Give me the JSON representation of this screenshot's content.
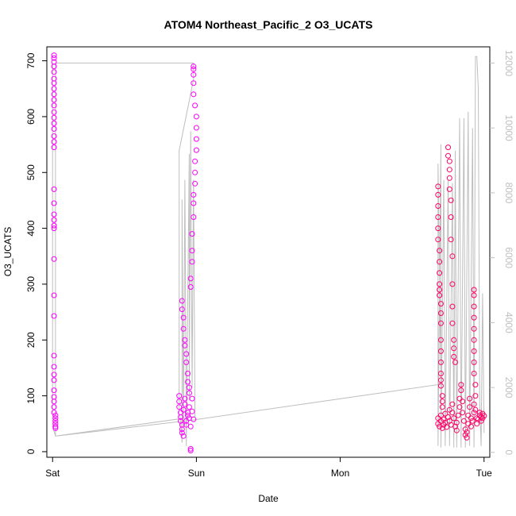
{
  "chart_data": {
    "type": "scatter",
    "title": "ATOM4 Northeast_Pacific_2 O3_UCATS",
    "xlabel": "Date",
    "ylabel": "O3_UCATS",
    "x_ticks": [
      "Sat",
      "Sun",
      "Mon",
      "Tue"
    ],
    "x_tick_values": [
      0,
      1,
      2,
      3
    ],
    "x_range": [
      -0.04,
      3.04
    ],
    "y_left_ticks": [
      0,
      100,
      200,
      300,
      400,
      500,
      600,
      700
    ],
    "y_left_range": [
      -10,
      725
    ],
    "y_right_ticks": [
      0,
      2000,
      4000,
      6000,
      8000,
      10000,
      12000
    ],
    "y_right_range": [
      -150,
      12500
    ],
    "grid": false,
    "colors": {
      "points_primary": "#ff00ff",
      "points_secondary": "#ff0066",
      "altitude_line": "#bebebe",
      "axes": "#000000",
      "right_axis": "#bebebe"
    },
    "series": [
      {
        "axis": "left",
        "style": "points",
        "points": [
          [
            0.01,
            710
          ],
          [
            0.01,
            705
          ],
          [
            0.01,
            698
          ],
          [
            0.01,
            690
          ],
          [
            0.01,
            680
          ],
          [
            0.01,
            668
          ],
          [
            0.01,
            660
          ],
          [
            0.01,
            650
          ],
          [
            0.01,
            640
          ],
          [
            0.01,
            630
          ],
          [
            0.01,
            620
          ],
          [
            0.01,
            608
          ],
          [
            0.01,
            598
          ],
          [
            0.01,
            588
          ],
          [
            0.01,
            578
          ],
          [
            0.01,
            565
          ],
          [
            0.01,
            555
          ],
          [
            0.01,
            545
          ],
          [
            0.01,
            470
          ],
          [
            0.01,
            445
          ],
          [
            0.01,
            425
          ],
          [
            0.01,
            415
          ],
          [
            0.01,
            405
          ],
          [
            0.01,
            400
          ],
          [
            0.01,
            345
          ],
          [
            0.01,
            280
          ],
          [
            0.01,
            243
          ],
          [
            0.01,
            172
          ],
          [
            0.01,
            152
          ],
          [
            0.01,
            138
          ],
          [
            0.01,
            128
          ],
          [
            0.01,
            110
          ],
          [
            0.01,
            98
          ],
          [
            0.01,
            90
          ],
          [
            0.01,
            80
          ],
          [
            0.01,
            70
          ],
          [
            0.02,
            65
          ],
          [
            0.02,
            60
          ],
          [
            0.02,
            55
          ],
          [
            0.02,
            50
          ],
          [
            0.02,
            45
          ],
          [
            0.02,
            42
          ],
          [
            0.88,
            100
          ],
          [
            0.88,
            90
          ],
          [
            0.88,
            80
          ],
          [
            0.89,
            70
          ],
          [
            0.89,
            62
          ],
          [
            0.89,
            55
          ],
          [
            0.9,
            48
          ],
          [
            0.9,
            40
          ],
          [
            0.9,
            34
          ],
          [
            0.91,
            28
          ],
          [
            0.91,
            75
          ],
          [
            0.92,
            85
          ],
          [
            0.92,
            95
          ],
          [
            0.93,
            55
          ],
          [
            0.93,
            48
          ],
          [
            0.94,
            65
          ],
          [
            0.94,
            70
          ],
          [
            0.95,
            80
          ],
          [
            0.95,
            60
          ],
          [
            0.96,
            45
          ],
          [
            0.96,
            5
          ],
          [
            0.96,
            2
          ],
          [
            0.97,
            95
          ],
          [
            0.97,
            72
          ],
          [
            0.98,
            58
          ],
          [
            0.9,
            270
          ],
          [
            0.9,
            255
          ],
          [
            0.91,
            240
          ],
          [
            0.91,
            220
          ],
          [
            0.92,
            200
          ],
          [
            0.92,
            190
          ],
          [
            0.93,
            175
          ],
          [
            0.93,
            160
          ],
          [
            0.94,
            140
          ],
          [
            0.94,
            125
          ],
          [
            0.95,
            115
          ],
          [
            0.95,
            105
          ],
          [
            0.96,
            310
          ],
          [
            0.96,
            295
          ],
          [
            0.97,
            340
          ],
          [
            0.97,
            360
          ],
          [
            0.97,
            390
          ],
          [
            0.98,
            420
          ],
          [
            0.98,
            445
          ],
          [
            0.98,
            460
          ],
          [
            0.99,
            480
          ],
          [
            0.99,
            500
          ],
          [
            0.99,
            520
          ],
          [
            1.0,
            540
          ],
          [
            1.0,
            560
          ],
          [
            1.0,
            580
          ],
          [
            1.0,
            600
          ],
          [
            0.99,
            620
          ],
          [
            0.98,
            640
          ],
          [
            0.98,
            660
          ],
          [
            0.98,
            675
          ],
          [
            0.98,
            685
          ],
          [
            0.98,
            690
          ],
          [
            2.68,
            475
          ],
          [
            2.68,
            460
          ],
          [
            2.68,
            440
          ],
          [
            2.68,
            420
          ],
          [
            2.68,
            400
          ],
          [
            2.68,
            380
          ],
          [
            2.69,
            360
          ],
          [
            2.69,
            340
          ],
          [
            2.69,
            320
          ],
          [
            2.69,
            300
          ],
          [
            2.69,
            290
          ],
          [
            2.69,
            280
          ],
          [
            2.7,
            265
          ],
          [
            2.7,
            248
          ],
          [
            2.7,
            230
          ],
          [
            2.7,
            200
          ],
          [
            2.7,
            180
          ],
          [
            2.7,
            160
          ],
          [
            2.7,
            140
          ],
          [
            2.7,
            128
          ],
          [
            2.7,
            118
          ],
          [
            2.71,
            100
          ],
          [
            2.71,
            90
          ],
          [
            2.71,
            80
          ],
          [
            2.75,
            545
          ],
          [
            2.75,
            530
          ],
          [
            2.76,
            520
          ],
          [
            2.76,
            505
          ],
          [
            2.76,
            490
          ],
          [
            2.76,
            470
          ],
          [
            2.77,
            450
          ],
          [
            2.77,
            420
          ],
          [
            2.77,
            380
          ],
          [
            2.78,
            350
          ],
          [
            2.78,
            300
          ],
          [
            2.78,
            260
          ],
          [
            2.78,
            230
          ],
          [
            2.79,
            200
          ],
          [
            2.79,
            185
          ],
          [
            2.79,
            170
          ],
          [
            2.8,
            160
          ],
          [
            2.68,
            60
          ],
          [
            2.68,
            50
          ],
          [
            2.69,
            45
          ],
          [
            2.7,
            55
          ],
          [
            2.7,
            65
          ],
          [
            2.71,
            42
          ],
          [
            2.72,
            48
          ],
          [
            2.72,
            58
          ],
          [
            2.73,
            52
          ],
          [
            2.73,
            68
          ],
          [
            2.74,
            44
          ],
          [
            2.75,
            62
          ],
          [
            2.76,
            75
          ],
          [
            2.76,
            55
          ],
          [
            2.77,
            48
          ],
          [
            2.78,
            70
          ],
          [
            2.78,
            85
          ],
          [
            2.79,
            60
          ],
          [
            2.8,
            45
          ],
          [
            2.81,
            38
          ],
          [
            2.81,
            52
          ],
          [
            2.82,
            65
          ],
          [
            2.83,
            80
          ],
          [
            2.83,
            95
          ],
          [
            2.84,
            110
          ],
          [
            2.84,
            120
          ],
          [
            2.85,
            90
          ],
          [
            2.85,
            70
          ],
          [
            2.86,
            55
          ],
          [
            2.87,
            40
          ],
          [
            2.87,
            30
          ],
          [
            2.88,
            25
          ],
          [
            2.88,
            35
          ],
          [
            2.89,
            50
          ],
          [
            2.89,
            65
          ],
          [
            2.9,
            80
          ],
          [
            2.9,
            95
          ],
          [
            2.91,
            60
          ],
          [
            2.91,
            45
          ],
          [
            2.92,
            55
          ],
          [
            2.93,
            70
          ],
          [
            2.93,
            85
          ],
          [
            2.94,
            100
          ],
          [
            2.94,
            75
          ],
          [
            2.95,
            60
          ],
          [
            2.95,
            50
          ],
          [
            2.96,
            58
          ],
          [
            2.97,
            65
          ],
          [
            2.97,
            70
          ],
          [
            2.98,
            62
          ],
          [
            2.98,
            55
          ],
          [
            2.99,
            60
          ],
          [
            2.99,
            68
          ],
          [
            3.0,
            64
          ],
          [
            2.93,
            290
          ],
          [
            2.93,
            280
          ],
          [
            2.93,
            260
          ],
          [
            2.93,
            240
          ],
          [
            2.93,
            220
          ],
          [
            2.93,
            200
          ],
          [
            2.93,
            180
          ],
          [
            2.93,
            160
          ],
          [
            2.93,
            140
          ],
          [
            2.94,
            120
          ]
        ]
      },
      {
        "axis": "right",
        "style": "line",
        "points": [
          [
            0.0,
            12000
          ],
          [
            0.0,
            11500
          ],
          [
            0.0,
            10000
          ],
          [
            0.0,
            8000
          ],
          [
            0.0,
            6000
          ],
          [
            0.0,
            4000
          ],
          [
            0.0,
            2000
          ],
          [
            0.0,
            800
          ],
          [
            0.02,
            500
          ],
          [
            0.02,
            12000
          ],
          [
            0.98,
            12000
          ],
          [
            0.98,
            11500
          ],
          [
            0.88,
            9300
          ],
          [
            0.88,
            1200
          ],
          [
            0.89,
            1000
          ],
          [
            0.9,
            300
          ],
          [
            0.9,
            7800
          ],
          [
            0.91,
            800
          ],
          [
            0.92,
            8400
          ],
          [
            0.93,
            200
          ],
          [
            0.95,
            9200
          ],
          [
            0.95,
            1600
          ],
          [
            0.96,
            9900
          ],
          [
            0.97,
            2000
          ],
          [
            0.98,
            8400
          ],
          [
            0.99,
            1100
          ],
          [
            0.02,
            500
          ],
          [
            0.98,
            1000
          ],
          [
            2.7,
            2100
          ],
          [
            2.68,
            8900
          ],
          [
            2.68,
            200
          ],
          [
            2.7,
            9500
          ],
          [
            2.7,
            150
          ],
          [
            2.72,
            8400
          ],
          [
            2.73,
            200
          ],
          [
            2.75,
            8400
          ],
          [
            2.76,
            200
          ],
          [
            2.78,
            8300
          ],
          [
            2.79,
            150
          ],
          [
            2.8,
            9300
          ],
          [
            2.81,
            150
          ],
          [
            2.83,
            10300
          ],
          [
            2.84,
            150
          ],
          [
            2.86,
            10300
          ],
          [
            2.87,
            150
          ],
          [
            2.89,
            10500
          ],
          [
            2.9,
            200
          ],
          [
            2.92,
            10000
          ],
          [
            2.93,
            150
          ],
          [
            2.94,
            12200
          ],
          [
            2.95,
            12200
          ],
          [
            2.96,
            11200
          ],
          [
            2.97,
            1500
          ],
          [
            2.98,
            200
          ],
          [
            2.99,
            4900
          ],
          [
            3.0,
            600
          ]
        ]
      }
    ]
  }
}
